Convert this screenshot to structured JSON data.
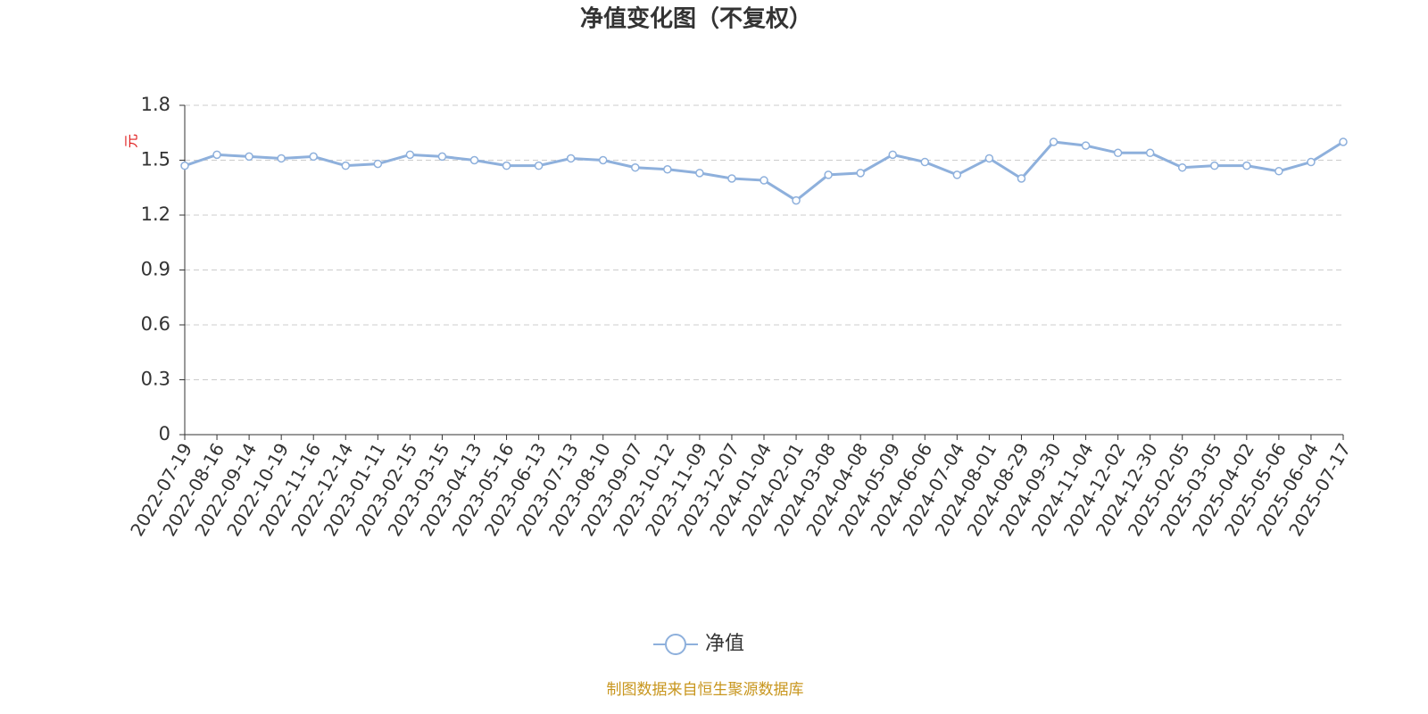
{
  "chart_data": {
    "type": "line",
    "title": "净值变化图（不复权）",
    "y_label": "元",
    "categories": [
      "2022-07-19",
      "2022-08-16",
      "2022-09-14",
      "2022-10-19",
      "2022-11-16",
      "2022-12-14",
      "2023-01-11",
      "2023-02-15",
      "2023-03-15",
      "2023-04-13",
      "2023-05-16",
      "2023-06-13",
      "2023-07-13",
      "2023-08-10",
      "2023-09-07",
      "2023-10-12",
      "2023-11-09",
      "2023-12-07",
      "2024-01-04",
      "2024-02-01",
      "2024-03-08",
      "2024-04-08",
      "2024-05-09",
      "2024-06-06",
      "2024-07-04",
      "2024-08-01",
      "2024-08-29",
      "2024-09-30",
      "2024-11-04",
      "2024-12-02",
      "2024-12-30",
      "2025-02-05",
      "2025-03-05",
      "2025-04-02",
      "2025-05-06",
      "2025-06-04",
      "2025-07-17"
    ],
    "series": [
      {
        "name": "净值",
        "color": "#8eb0dc",
        "values": [
          1.47,
          1.53,
          1.52,
          1.51,
          1.52,
          1.47,
          1.48,
          1.53,
          1.52,
          1.5,
          1.47,
          1.47,
          1.51,
          1.5,
          1.46,
          1.45,
          1.43,
          1.4,
          1.39,
          1.28,
          1.42,
          1.43,
          1.53,
          1.49,
          1.42,
          1.51,
          1.4,
          1.6,
          1.58,
          1.54,
          1.54,
          1.46,
          1.47,
          1.47,
          1.44,
          1.49,
          1.6
        ]
      }
    ],
    "ylim": [
      0,
      1.8
    ],
    "yticks": [
      0,
      0.3,
      0.6,
      0.9,
      1.2,
      1.5,
      1.8
    ],
    "grid": true,
    "legend": "bottom",
    "source": "制图数据来自恒生聚源数据库"
  }
}
